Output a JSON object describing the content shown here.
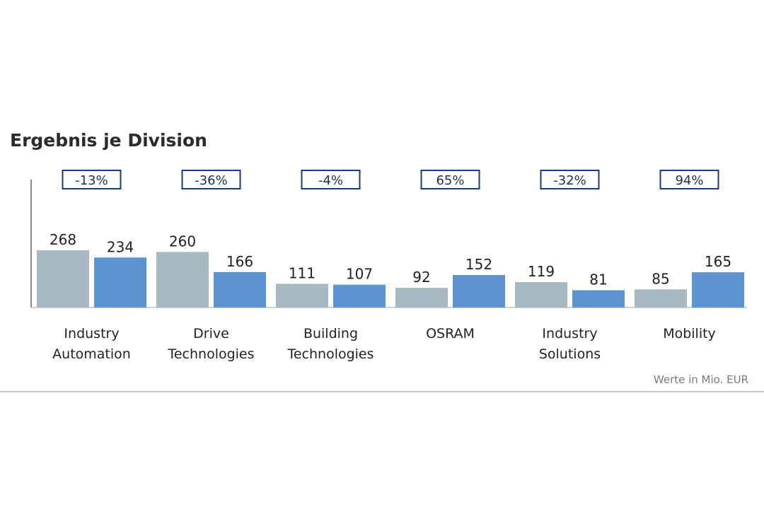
{
  "chart_data": {
    "type": "bar",
    "title": "Ergebnis je Division",
    "footnote": "Werte in Mio. EUR",
    "categories": [
      [
        "Industry",
        "Automation"
      ],
      [
        "Drive",
        "Technologies"
      ],
      [
        "Building",
        "Technologies"
      ],
      [
        "OSRAM"
      ],
      [
        "Industry",
        "Solutions"
      ],
      [
        "Mobility"
      ]
    ],
    "series": [
      {
        "values": [
          268,
          260,
          111,
          92,
          119,
          85
        ],
        "color": "#a8b9c4"
      },
      {
        "values": [
          234,
          166,
          107,
          152,
          81,
          165
        ],
        "color": "#5b93d3"
      }
    ],
    "changes": [
      "-13%",
      "-36%",
      "-4%",
      "65%",
      "-32%",
      "94%"
    ],
    "change_box_color": "#1a3a7a",
    "ylim": [
      0,
      268
    ],
    "grid": false,
    "legend": "none"
  }
}
